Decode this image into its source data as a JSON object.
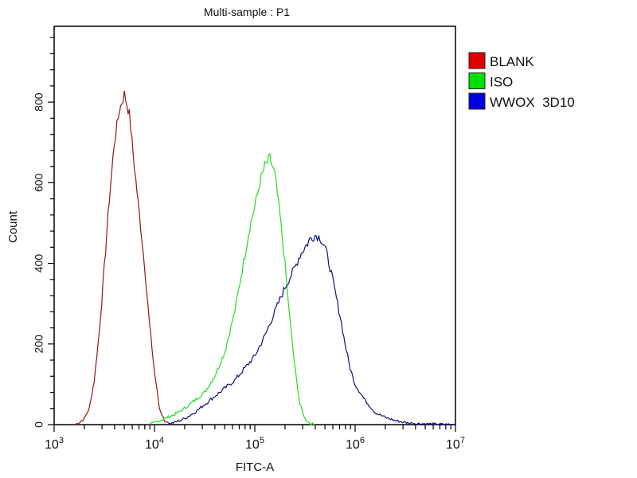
{
  "chart_data": {
    "type": "line",
    "title": "Multi-sample : P1",
    "xlabel": "FITC-A",
    "ylabel": "Count",
    "xscale": "log",
    "xlim_log10": [
      3,
      7
    ],
    "ylim": [
      0,
      988
    ],
    "x_ticks": [
      {
        "base": "10",
        "exp": "3",
        "value_log10": 3
      },
      {
        "base": "10",
        "exp": "4",
        "value_log10": 4
      },
      {
        "base": "10",
        "exp": "5",
        "value_log10": 5
      },
      {
        "base": "10",
        "exp": "6",
        "value_log10": 6
      },
      {
        "base": "10",
        "exp": "7",
        "value_log10": 7
      }
    ],
    "y_ticks": [
      "0",
      "200",
      "400",
      "600",
      "800"
    ],
    "y_tick_values": [
      0,
      200,
      400,
      600,
      800
    ],
    "grid": false,
    "legend_position": "right-top",
    "series": [
      {
        "name": "BLANK",
        "color": "#e00000",
        "line_color": "#8b1a1a",
        "x_log10": [
          3.2,
          3.25,
          3.3,
          3.35,
          3.4,
          3.45,
          3.5,
          3.55,
          3.6,
          3.65,
          3.7,
          3.75,
          3.8,
          3.85,
          3.9,
          3.95,
          4.0,
          4.05,
          4.1,
          4.15
        ],
        "counts": [
          0,
          5,
          15,
          40,
          110,
          230,
          390,
          560,
          700,
          780,
          820,
          770,
          640,
          520,
          400,
          250,
          130,
          40,
          10,
          0
        ]
      },
      {
        "name": "ISO",
        "color": "#00e000",
        "line_color": "#22dd22",
        "x_log10": [
          3.95,
          4.0,
          4.1,
          4.2,
          4.3,
          4.4,
          4.5,
          4.6,
          4.7,
          4.8,
          4.85,
          4.9,
          4.95,
          5.0,
          5.05,
          5.1,
          5.15,
          5.2,
          5.25,
          5.3,
          5.35,
          5.4,
          5.45,
          5.5,
          5.55,
          5.6
        ],
        "counts": [
          0,
          5,
          15,
          25,
          40,
          60,
          80,
          120,
          180,
          280,
          350,
          420,
          490,
          540,
          600,
          640,
          660,
          620,
          520,
          400,
          260,
          140,
          50,
          15,
          3,
          0
        ]
      },
      {
        "name": "WWOX  3D10",
        "color": "#0000e0",
        "line_color": "#10107a",
        "x_log10": [
          4.1,
          4.2,
          4.3,
          4.4,
          4.5,
          4.6,
          4.7,
          4.8,
          4.9,
          5.0,
          5.1,
          5.2,
          5.3,
          5.4,
          5.45,
          5.5,
          5.55,
          5.6,
          5.65,
          5.7,
          5.75,
          5.8,
          5.85,
          5.9,
          5.95,
          6.0,
          6.1,
          6.2,
          6.3,
          6.4,
          6.5,
          6.6,
          6.8,
          7.0
        ],
        "counts": [
          0,
          5,
          15,
          30,
          50,
          70,
          90,
          110,
          140,
          170,
          220,
          280,
          340,
          390,
          420,
          440,
          460,
          470,
          465,
          440,
          390,
          330,
          270,
          200,
          140,
          100,
          60,
          30,
          18,
          10,
          5,
          3,
          1,
          0
        ]
      }
    ]
  }
}
